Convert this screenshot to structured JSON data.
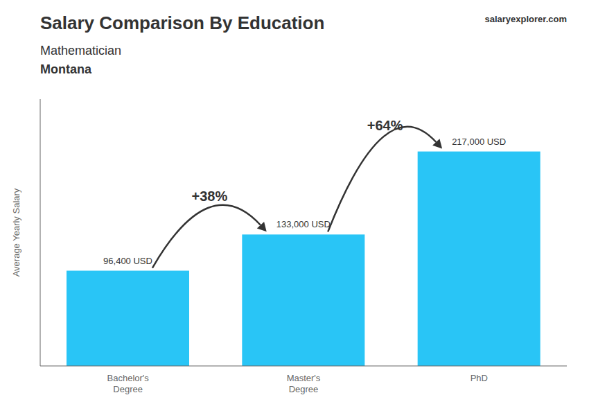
{
  "chart_data": {
    "type": "bar",
    "title": "Salary Comparison By Education",
    "subtitle": "Mathematician",
    "categories": [
      "Bachelor's\nDegree",
      "Master's\nDegree",
      "PhD"
    ],
    "values": [
      96400,
      133000,
      217000
    ],
    "value_labels": [
      "96,400 USD",
      "133,000 USD",
      "217,000 USD"
    ],
    "color": "#29c5f6",
    "ylim": [
      0,
      270000
    ],
    "y_label": "Average Yearly Salary",
    "tick_labels": "x",
    "grid": false,
    "annotations": [
      "Montana",
      "+38%",
      "+64%",
      "salaryexplorer.com"
    ]
  }
}
